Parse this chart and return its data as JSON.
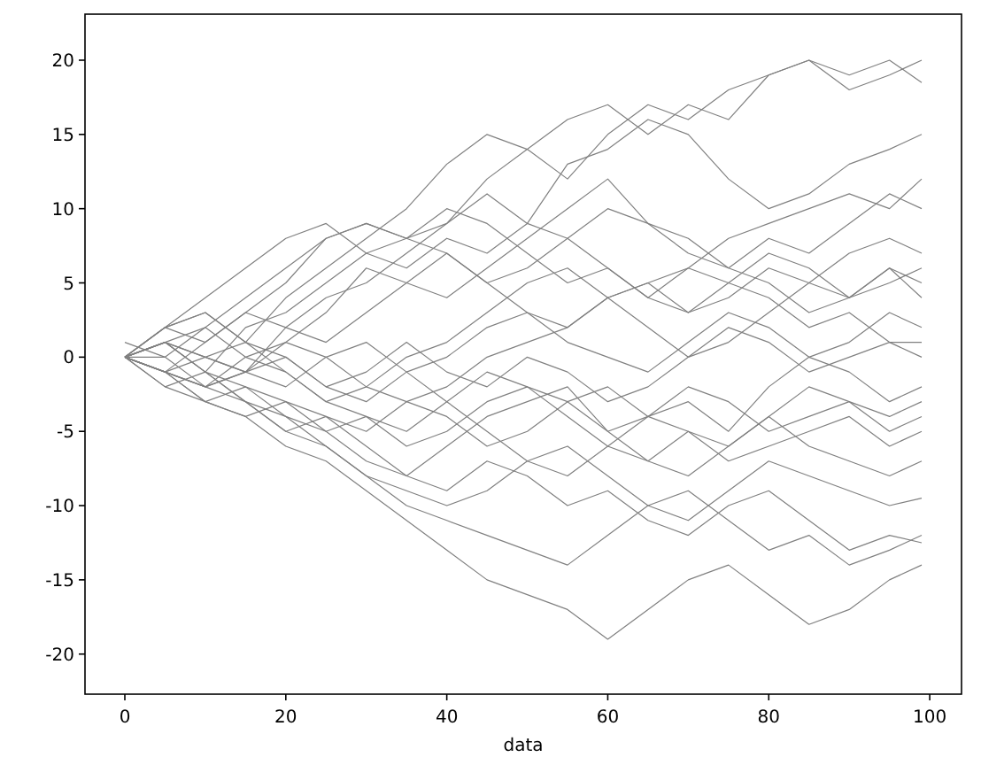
{
  "chart_data": {
    "type": "line",
    "xlabel": "data",
    "x": [
      0,
      5,
      10,
      15,
      20,
      25,
      30,
      35,
      40,
      45,
      50,
      55,
      60,
      65,
      70,
      75,
      80,
      85,
      90,
      95,
      99
    ],
    "xlim": [
      -4.95,
      103.95
    ],
    "ylim": [
      -22.7,
      23.1
    ],
    "xticks": [
      0,
      20,
      40,
      60,
      80,
      100
    ],
    "yticks": [
      -20,
      -15,
      -10,
      -5,
      0,
      5,
      10,
      15,
      20
    ],
    "line_style": "solid",
    "marker": "none",
    "grid": false,
    "series": [
      {
        "color": "#808080",
        "values": [
          0,
          2,
          3,
          1,
          4,
          6,
          8,
          10,
          13,
          15,
          14,
          12,
          15,
          17,
          16,
          18,
          19,
          20,
          19,
          20,
          18.5
        ]
      },
      {
        "color": "#808080",
        "values": [
          0,
          1,
          -1,
          2,
          3,
          5,
          7,
          8,
          9,
          12,
          14,
          16,
          17,
          15,
          17,
          16,
          19,
          20,
          18,
          19,
          20
        ]
      },
      {
        "color": "#808080",
        "values": [
          0,
          -1,
          1,
          3,
          2,
          4,
          5,
          7,
          9,
          11,
          9,
          13,
          14,
          16,
          15,
          12,
          10,
          11,
          13,
          14,
          15
        ]
      },
      {
        "color": "#808080",
        "values": [
          1,
          0,
          2,
          4,
          6,
          8,
          9,
          8,
          10,
          9,
          7,
          5,
          6,
          4,
          6,
          8,
          9,
          10,
          11,
          10,
          12
        ]
      },
      {
        "color": "#808080",
        "values": [
          0,
          1,
          0,
          -1,
          2,
          1,
          3,
          5,
          4,
          6,
          8,
          10,
          12,
          9,
          7,
          6,
          8,
          7,
          9,
          11,
          10
        ]
      },
      {
        "color": "#808080",
        "values": [
          0,
          -1,
          -2,
          0,
          1,
          3,
          6,
          5,
          7,
          5,
          3,
          2,
          4,
          5,
          3,
          4,
          6,
          5,
          7,
          8,
          7
        ]
      },
      {
        "color": "#808080",
        "values": [
          0,
          2,
          1,
          3,
          5,
          8,
          9,
          8,
          7,
          5,
          6,
          8,
          10,
          9,
          8,
          6,
          5,
          3,
          4,
          6,
          5
        ]
      },
      {
        "color": "#808080",
        "values": [
          0,
          1,
          2,
          0,
          -1,
          -3,
          -2,
          0,
          1,
          3,
          5,
          6,
          4,
          2,
          0,
          1,
          3,
          5,
          4,
          6,
          4
        ]
      },
      {
        "color": "#808080",
        "values": [
          0,
          -1,
          0,
          1,
          0,
          -2,
          -3,
          -1,
          0,
          2,
          3,
          1,
          0,
          -1,
          1,
          3,
          2,
          0,
          1,
          3,
          2
        ]
      },
      {
        "color": "#808080",
        "values": [
          0,
          1,
          -1,
          -2,
          -3,
          -4,
          -5,
          -3,
          -2,
          0,
          1,
          2,
          4,
          5,
          6,
          5,
          4,
          2,
          3,
          1,
          1
        ]
      },
      {
        "color": "#808080",
        "values": [
          0,
          0,
          -2,
          -1,
          1,
          0,
          -2,
          -3,
          -4,
          -6,
          -5,
          -3,
          -2,
          -4,
          -3,
          -5,
          -2,
          0,
          -1,
          -3,
          -2
        ]
      },
      {
        "color": "#808080",
        "values": [
          0,
          -1,
          -3,
          -2,
          -4,
          -5,
          -4,
          -6,
          -5,
          -3,
          -2,
          -4,
          -6,
          -7,
          -5,
          -6,
          -4,
          -2,
          -3,
          -4,
          -3
        ]
      },
      {
        "color": "#808080",
        "values": [
          0,
          1,
          0,
          -1,
          -2,
          0,
          1,
          -1,
          -3,
          -5,
          -7,
          -8,
          -6,
          -4,
          -5,
          -7,
          -6,
          -5,
          -4,
          -6,
          -5
        ]
      },
      {
        "color": "#808080",
        "values": [
          0,
          -2,
          -3,
          -4,
          -3,
          -5,
          -7,
          -8,
          -6,
          -4,
          -3,
          -2,
          -5,
          -7,
          -8,
          -6,
          -4,
          -6,
          -7,
          -8,
          -7
        ]
      },
      {
        "color": "#808080",
        "values": [
          0,
          -1,
          -2,
          -3,
          -5,
          -6,
          -8,
          -9,
          -10,
          -9,
          -7,
          -6,
          -8,
          -10,
          -11,
          -9,
          -7,
          -8,
          -9,
          -10,
          -9.5
        ]
      },
      {
        "color": "#808080",
        "values": [
          0,
          1,
          -1,
          -3,
          -4,
          -6,
          -8,
          -10,
          -11,
          -12,
          -13,
          -14,
          -12,
          -10,
          -9,
          -11,
          -13,
          -12,
          -14,
          -13,
          -12
        ]
      },
      {
        "color": "#808080",
        "values": [
          0,
          -1,
          -3,
          -4,
          -6,
          -7,
          -9,
          -11,
          -13,
          -15,
          -16,
          -17,
          -19,
          -17,
          -15,
          -14,
          -16,
          -18,
          -17,
          -15,
          -14
        ]
      },
      {
        "color": "#808080",
        "values": [
          0,
          -2,
          -1,
          -3,
          -5,
          -4,
          -6,
          -8,
          -9,
          -7,
          -8,
          -10,
          -9,
          -11,
          -12,
          -10,
          -9,
          -11,
          -13,
          -12,
          -12.5
        ]
      },
      {
        "color": "#808080",
        "values": [
          0,
          2,
          4,
          6,
          8,
          9,
          7,
          6,
          8,
          7,
          9,
          8,
          6,
          4,
          3,
          5,
          7,
          6,
          4,
          5,
          6
        ]
      },
      {
        "color": "#808080",
        "values": [
          0,
          -1,
          -2,
          -1,
          0,
          -2,
          -1,
          1,
          -1,
          -2,
          0,
          -1,
          -3,
          -2,
          0,
          2,
          1,
          -1,
          0,
          1,
          0
        ]
      },
      {
        "color": "#808080",
        "values": [
          0,
          2,
          3,
          1,
          -1,
          -3,
          -4,
          -5,
          -3,
          -1,
          -2,
          -3,
          -5,
          -4,
          -2,
          -3,
          -5,
          -4,
          -3,
          -5,
          -4
        ]
      }
    ]
  }
}
